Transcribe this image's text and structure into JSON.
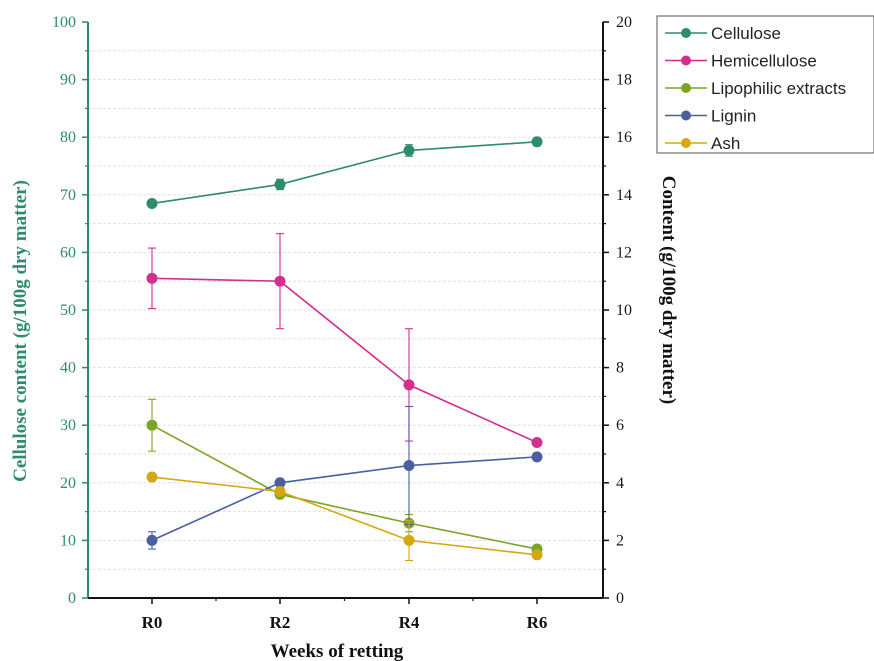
{
  "chart_data": {
    "type": "line",
    "categories": [
      "R0",
      "R2",
      "R4",
      "R6"
    ],
    "xlabel": "Weeks of retting",
    "ylabel_left": "Cellulose content (g/100g dry matter)",
    "ylabel_right": "Content (g/100g dry matter)",
    "ylim_left": [
      0,
      100
    ],
    "ylim_right": [
      0,
      20
    ],
    "yticks_left": [
      "0",
      "10",
      "20",
      "30",
      "40",
      "50",
      "60",
      "70",
      "80",
      "90",
      "100"
    ],
    "yticks_right": [
      "0",
      "2",
      "4",
      "6",
      "8",
      "10",
      "12",
      "14",
      "16",
      "18",
      "20"
    ],
    "grid": true,
    "legend_position": "top-right",
    "series": [
      {
        "name": "Cellulose",
        "axis": "left",
        "color": "#2e8b6e",
        "values": [
          68.5,
          71.8,
          77.7,
          79.2
        ],
        "errors": [
          0,
          0.9,
          1.0,
          0
        ]
      },
      {
        "name": "Hemicellulose",
        "axis": "right",
        "color": "#d1308f",
        "values": [
          11.1,
          11.0,
          7.4,
          5.4
        ],
        "errors": [
          1.05,
          1.65,
          1.95,
          0
        ]
      },
      {
        "name": "Lipophilic extracts",
        "axis": "right",
        "color": "#7ba428",
        "values": [
          6.0,
          3.6,
          2.6,
          1.7
        ],
        "errors": [
          0.9,
          0,
          0.3,
          0
        ]
      },
      {
        "name": "Lignin",
        "axis": "right",
        "color": "#4a5fa0",
        "values": [
          2.0,
          4.0,
          4.6,
          4.9
        ],
        "errors": [
          0.3,
          0,
          2.05,
          0
        ]
      },
      {
        "name": "Ash",
        "axis": "right",
        "color": "#d4a811",
        "values": [
          4.2,
          3.7,
          2.0,
          1.5
        ],
        "errors": [
          0,
          0.15,
          0.7,
          0
        ]
      }
    ],
    "accent_color": "#2e8b6e"
  }
}
